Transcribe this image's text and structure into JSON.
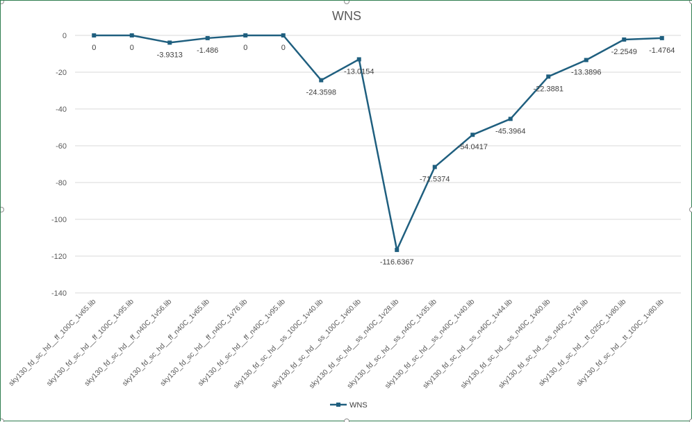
{
  "chart_data": {
    "type": "line",
    "title": "WNS",
    "xlabel": "",
    "ylabel": "",
    "ylim": [
      -140,
      0
    ],
    "yticks": [
      0,
      -20,
      -40,
      -60,
      -80,
      -100,
      -120,
      -140
    ],
    "ytick_labels": [
      "0",
      "-20",
      "-40",
      "-60",
      "-80",
      "-100",
      "-120",
      "-140"
    ],
    "grid": true,
    "legend_position": "bottom",
    "categories": [
      "sky130_fd_sc_hd__ff_100C_1v65.lib",
      "sky130_fd_sc_hd__ff_100C_1v95.lib",
      "sky130_fd_sc_hd__ff_n40C_1v56.lib",
      "sky130_fd_sc_hd__ff_n40C_1v65.lib",
      "sky130_fd_sc_hd__ff_n40C_1v76.lib",
      "sky130_fd_sc_hd__ff_n40C_1v95.lib",
      "sky130_fd_sc_hd__ss_100C_1v40.lib",
      "sky130_fd_sc_hd__ss_100C_1v60.lib",
      "sky130_fd_sc_hd__ss_n40C_1v28.lib",
      "sky130_fd_sc_hd__ss_n40C_1v35.lib",
      "sky130_fd_sc_hd__ss_n40C_1v40.lib",
      "sky130_fd_sc_hd__ss_n40C_1v44.lib",
      "sky130_fd_sc_hd__ss_n40C_1v60.lib",
      "sky130_fd_sc_hd__ss_n40C_1v76.lib",
      "sky130_fd_sc_hd__tt_025C_1v80.lib",
      "sky130_fd_sc_hd__tt_100C_1v80.lib"
    ],
    "series": [
      {
        "name": "WNS",
        "color": "#1f5f7f",
        "values": [
          0,
          0,
          -3.9313,
          -1.486,
          0,
          0,
          -24.3598,
          -13.0154,
          -116.6367,
          -71.5374,
          -54.0417,
          -45.3964,
          -22.3881,
          -13.3896,
          -2.2549,
          -1.4764
        ],
        "labels": [
          "0",
          "0",
          "-3.9313",
          "-1.486",
          "0",
          "0",
          "-24.3598",
          "-13.0154",
          "-116.6367",
          "-71.5374",
          "-54.0417",
          "-45.3964",
          "-22.3881",
          "-13.3896",
          "-2.2549",
          "-1.4764"
        ]
      }
    ]
  },
  "colors": {
    "series": "#1f5f7f",
    "gridline": "#d9d9d9",
    "frame_border": "#2e7d4f"
  }
}
